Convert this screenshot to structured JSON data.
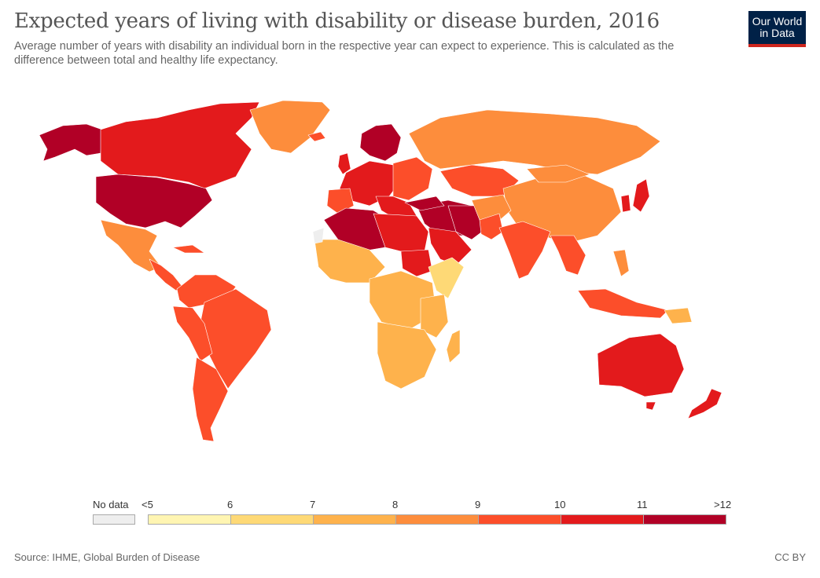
{
  "header": {
    "title": "Expected years of living with disability or disease burden, 2016",
    "subtitle": "Average number of years with disability an individual born in the respective year can expect to experience. This is calculated as the difference between total and healthy life expectancy."
  },
  "logo": {
    "line1": "Our World",
    "line2": "in Data"
  },
  "legend": {
    "no_data_label": "No data",
    "no_data_color": "#eeeeee",
    "ticks": [
      "<5",
      "6",
      "7",
      "8",
      "9",
      "10",
      "11",
      ">12"
    ],
    "bins": [
      {
        "range": "<5-6",
        "color": "#fff5b2"
      },
      {
        "range": "6-7",
        "color": "#fed976"
      },
      {
        "range": "7-8",
        "color": "#feb24c"
      },
      {
        "range": "8-9",
        "color": "#fd8d3c"
      },
      {
        "range": "9-10",
        "color": "#fc4e2a"
      },
      {
        "range": "10-11",
        "color": "#e31a1c"
      },
      {
        "range": "11->12",
        "color": "#b10026"
      }
    ]
  },
  "footer": {
    "source": "Source: IHME, Global Burden of Disease",
    "license": "CC BY"
  },
  "colors": {
    "gt12": "#b10026",
    "y10_11": "#e31a1c",
    "y9_10": "#fc4e2a",
    "y8_9": "#fd8d3c",
    "y7_8": "#feb24c",
    "y6_7": "#fed976",
    "lt6": "#fff5b2",
    "brand": "#002147",
    "brand_accent": "#ce261e"
  }
}
